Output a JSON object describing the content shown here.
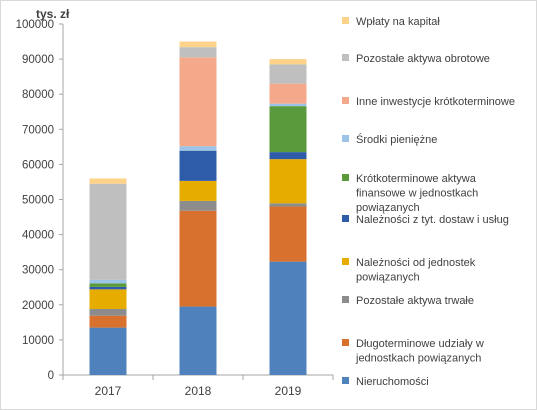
{
  "chart_data": {
    "type": "bar",
    "stacked": true,
    "unit_label": "tys. zł",
    "categories": [
      "2017",
      "2018",
      "2019"
    ],
    "ylim": [
      0,
      100000
    ],
    "yticks": [
      0,
      10000,
      20000,
      30000,
      40000,
      50000,
      60000,
      70000,
      80000,
      90000,
      100000
    ],
    "grid": false,
    "legend_position": "right",
    "series": [
      {
        "name": "Nieruchomości",
        "color": "#4f81bd",
        "values": [
          13500,
          19500,
          32300
        ]
      },
      {
        "name": "Długoterminowe udziały w jednostkach powiązanych",
        "color": "#d9712e",
        "values": [
          3400,
          27300,
          15700
        ]
      },
      {
        "name": "Pozostałe aktywa trwałe",
        "color": "#8c8c8c",
        "values": [
          1900,
          2800,
          900
        ]
      },
      {
        "name": "Należności od jednostek powiązanych",
        "color": "#e6ac00",
        "values": [
          5600,
          5700,
          12600
        ]
      },
      {
        "name": "Należności z tyt. dostaw i usług",
        "color": "#2f5ca8",
        "values": [
          700,
          8600,
          2000
        ]
      },
      {
        "name": "Krótkoterminowe aktywa finansowe w jednostkach powiązanych",
        "color": "#5b9a3c",
        "values": [
          1000,
          0,
          13100
        ]
      },
      {
        "name": "Środki pieniężne",
        "color": "#9dc3e6",
        "values": [
          1000,
          1300,
          700
        ]
      },
      {
        "name": "Inne inwestycje krótkoterminowe",
        "color": "#f4a98a",
        "values": [
          0,
          25300,
          5700
        ]
      },
      {
        "name": "Pozostałe aktywa obrotowe",
        "color": "#bfbfbf",
        "values": [
          27400,
          2900,
          5500
        ]
      },
      {
        "name": "Wpłaty na kapitał",
        "color": "#fdd38a",
        "values": [
          1500,
          1600,
          1500
        ]
      }
    ]
  }
}
